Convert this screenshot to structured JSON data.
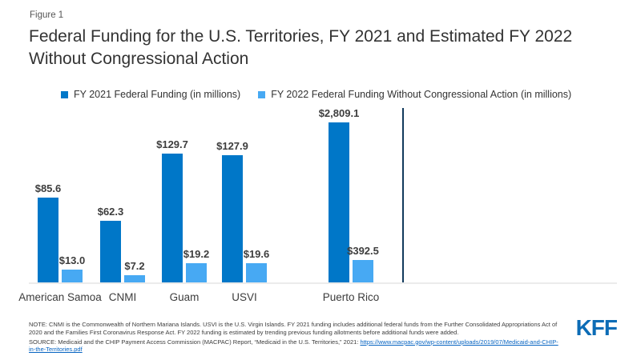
{
  "figure_label": "Figure 1",
  "title": "Federal Funding for the U.S. Territories, FY 2021 and Estimated FY 2022 Without Congressional Action",
  "chart_data": {
    "type": "bar",
    "title": "Federal Funding for the U.S. Territories, FY 2021 and Estimated FY 2022 Without Congressional Action",
    "categories": [
      "American Samoa",
      "CNMI",
      "Guam",
      "USVI",
      "Puerto Rico"
    ],
    "series": [
      {
        "name": "FY 2021 Federal Funding (in millions)",
        "color": "#0077C8",
        "values": [
          85.6,
          62.3,
          129.7,
          127.9,
          2809.1
        ],
        "labels": [
          "$85.6",
          "$62.3",
          "$129.7",
          "$127.9",
          "$2,809.1"
        ]
      },
      {
        "name": "FY 2022 Federal Funding Without Congressional Action (in millions)",
        "color": "#47A9F3",
        "values": [
          13.0,
          7.2,
          19.2,
          19.6,
          392.5
        ],
        "labels": [
          "$13.0",
          "$7.2",
          "$19.2",
          "$19.6",
          "$392.5"
        ]
      }
    ],
    "xlabel": "",
    "ylabel": "",
    "grid": false,
    "legend_position": "top",
    "separate_scale": {
      "category": "Puerto Rico",
      "divider_color": "#123A5C",
      "note": "Puerto Rico bars are drawn on a compressed value scale, separated from the other territories by a vertical divider line"
    }
  },
  "note_text": "NOTE: CNMI is the Commonwealth of Northern Mariana Islands. USVI is the U.S. Virgin Islands. FY 2021 funding includes additional federal funds from the Further Consolidated Appropriations Act of 2020 and the Families First Coronavirus Response Act. FY 2022 funding is estimated by trending previous funding allotments before additional funds were added.",
  "source_prefix": "SOURCE: Medicaid and the CHIP Payment Access Commission (MACPAC) Report, “Medicaid in the U.S. Territories,” 2021: ",
  "source_link": "https://www.macpac.gov/wp-content/uploads/2019/07/Medicaid-and-CHIP-in-the-Territories.pdf",
  "logo_text": "KFF"
}
